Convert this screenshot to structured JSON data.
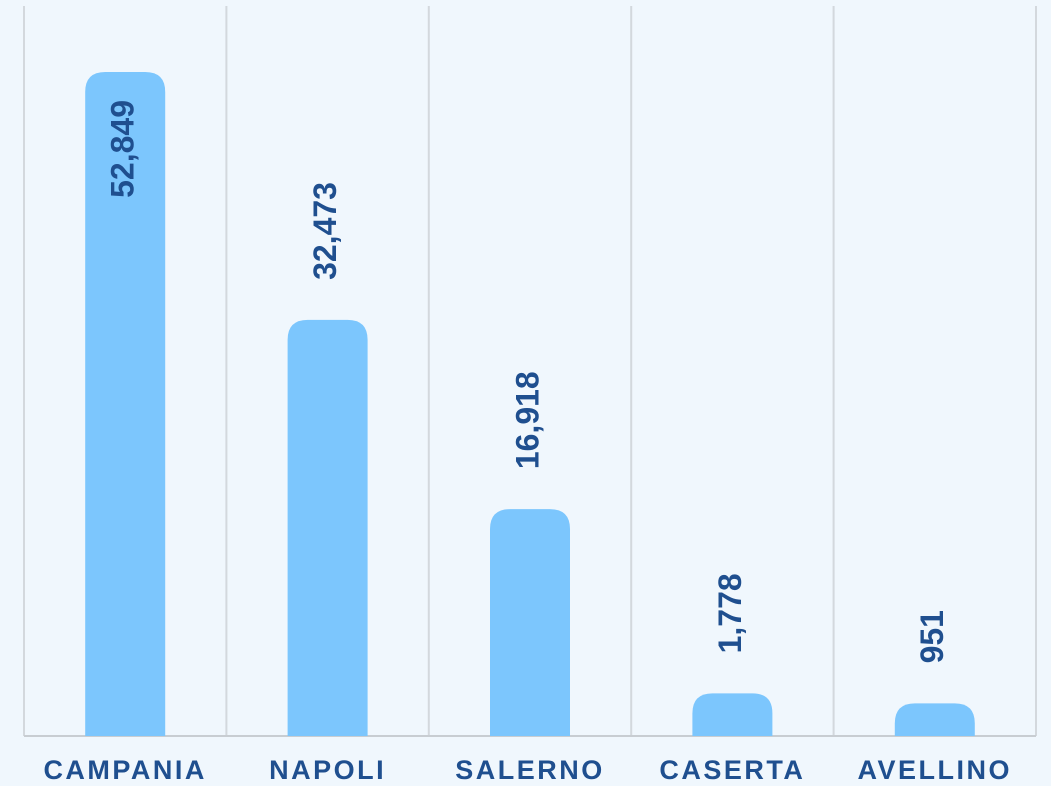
{
  "chart_data": {
    "type": "bar",
    "categories": [
      "CAMPANIA",
      "NAPOLI",
      "SALERNO",
      "CASERTA",
      "AVELLINO"
    ],
    "values": [
      52849,
      32473,
      16918,
      1778,
      951
    ],
    "value_labels": [
      "52,849",
      "32,473",
      "16,918",
      "1,778",
      "951"
    ],
    "color": "#7cc6fd",
    "grid": true
  }
}
